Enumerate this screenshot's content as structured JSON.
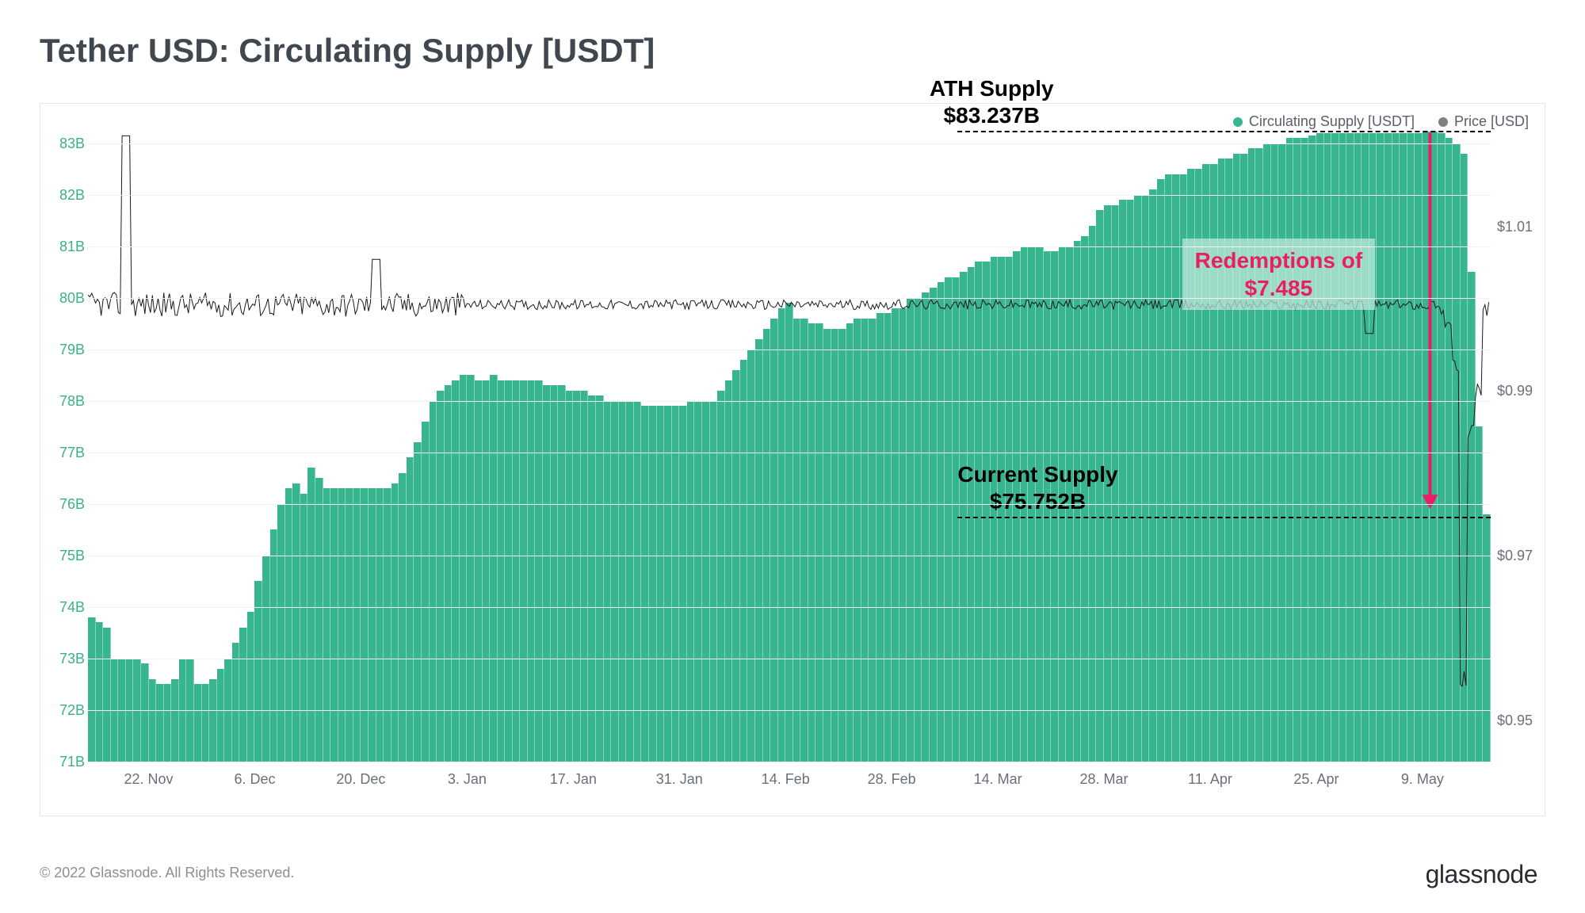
{
  "title": "Tether USD: Circulating Supply [USDT]",
  "footer": "© 2022 Glassnode. All Rights Reserved.",
  "brand": "glassnode",
  "chart": {
    "type": "bar+line",
    "background_color": "#ffffff",
    "grid_color": "#f2f3f4",
    "bar_color": "#37b58e",
    "line_color": "#1a1a1a",
    "line_width": 1,
    "y_left": {
      "min": 71,
      "max": 83.3,
      "ticks": [
        71,
        72,
        73,
        74,
        75,
        76,
        77,
        78,
        79,
        80,
        81,
        82,
        83
      ],
      "tick_labels": [
        "71B",
        "72B",
        "73B",
        "74B",
        "75B",
        "76B",
        "77B",
        "78B",
        "79B",
        "80B",
        "81B",
        "82B",
        "83B"
      ],
      "label_color": "#3caf8a",
      "label_fontsize": 18
    },
    "y_right": {
      "min": 0.945,
      "max": 1.022,
      "ticks": [
        0.95,
        0.97,
        0.99,
        1.01
      ],
      "tick_labels": [
        "$0.95",
        "$0.97",
        "$0.99",
        "$1.01"
      ],
      "label_color": "#6a7078",
      "label_fontsize": 18
    },
    "x": {
      "ticks": [
        8,
        22,
        36,
        50,
        64,
        78,
        92,
        106,
        120,
        134,
        148,
        162,
        176
      ],
      "tick_labels": [
        "22. Nov",
        "6. Dec",
        "20. Dec",
        "3. Jan",
        "17. Jan",
        "31. Jan",
        "14. Feb",
        "28. Feb",
        "14. Mar",
        "28. Mar",
        "11. Apr",
        "25. Apr",
        "9. May"
      ],
      "label_color": "#6a7078",
      "label_fontsize": 18
    },
    "supply_values": [
      73.8,
      73.7,
      73.6,
      73.0,
      73.0,
      73.0,
      73.0,
      72.9,
      72.6,
      72.5,
      72.5,
      72.6,
      73.0,
      73.0,
      72.5,
      72.5,
      72.6,
      72.8,
      73.0,
      73.3,
      73.6,
      73.9,
      74.5,
      75.0,
      75.5,
      76.0,
      76.3,
      76.4,
      76.2,
      76.7,
      76.5,
      76.3,
      76.3,
      76.3,
      76.3,
      76.3,
      76.3,
      76.3,
      76.3,
      76.3,
      76.4,
      76.6,
      76.9,
      77.2,
      77.6,
      78.0,
      78.2,
      78.3,
      78.4,
      78.5,
      78.5,
      78.4,
      78.4,
      78.5,
      78.4,
      78.4,
      78.4,
      78.4,
      78.4,
      78.4,
      78.3,
      78.3,
      78.3,
      78.2,
      78.2,
      78.2,
      78.1,
      78.1,
      78.0,
      78.0,
      78.0,
      78.0,
      78.0,
      77.9,
      77.9,
      77.9,
      77.9,
      77.9,
      77.9,
      78.0,
      78.0,
      78.0,
      78.0,
      78.2,
      78.4,
      78.6,
      78.8,
      79.0,
      79.2,
      79.4,
      79.6,
      79.8,
      79.9,
      79.6,
      79.6,
      79.5,
      79.5,
      79.4,
      79.4,
      79.4,
      79.5,
      79.6,
      79.6,
      79.6,
      79.7,
      79.7,
      79.8,
      79.8,
      80.0,
      80.0,
      80.1,
      80.2,
      80.3,
      80.4,
      80.4,
      80.5,
      80.6,
      80.7,
      80.7,
      80.8,
      80.8,
      80.8,
      80.9,
      81.0,
      81.0,
      81.0,
      80.9,
      80.9,
      81.0,
      81.0,
      81.1,
      81.2,
      81.4,
      81.7,
      81.8,
      81.8,
      81.9,
      81.9,
      82.0,
      82.0,
      82.1,
      82.3,
      82.4,
      82.4,
      82.4,
      82.5,
      82.5,
      82.6,
      82.6,
      82.7,
      82.7,
      82.8,
      82.8,
      82.9,
      82.9,
      83.0,
      83.0,
      83.0,
      83.1,
      83.1,
      83.1,
      83.15,
      83.2,
      83.2,
      83.2,
      83.2,
      83.2,
      83.2,
      83.2,
      83.2,
      83.2,
      83.2,
      83.2,
      83.19,
      83.2,
      83.2,
      83.23,
      83.23,
      83.2,
      83.1,
      83.0,
      82.8,
      80.5,
      77.5,
      75.8
    ],
    "price_baseline": 1.0005,
    "price_noise_high": 0.0015,
    "price_noise_low": 0.0006,
    "price_spikes": [
      {
        "index": 5,
        "value": 1.021
      },
      {
        "index": 38,
        "value": 1.006
      },
      {
        "index": 169,
        "value": 0.997
      }
    ],
    "price_crash": {
      "start_index": 178,
      "values": [
        1.0,
        0.998,
        0.993,
        0.955,
        0.985,
        0.99,
        1.0
      ]
    },
    "legend": [
      {
        "label": "Circulating Supply [USDT]",
        "color": "#37b58e"
      },
      {
        "label": "Price [USD]",
        "color": "#808080"
      }
    ],
    "annotations": {
      "ath": {
        "line1": "ATH Supply",
        "line2": "$83.237B",
        "fontsize": 28,
        "color": "#000000",
        "level": 83.237
      },
      "current": {
        "line1": "Current Supply",
        "line2": "$75.752B",
        "fontsize": 28,
        "color": "#000000",
        "level": 75.752
      },
      "redemption": {
        "line1": "Redemptions of",
        "line2": "$7.485",
        "color": "#e91e63",
        "fontsize": 28
      },
      "arrow": {
        "color": "#e91e63",
        "x_index": 177,
        "from_level": 83.2,
        "to_level": 75.9,
        "width": 4
      }
    }
  }
}
